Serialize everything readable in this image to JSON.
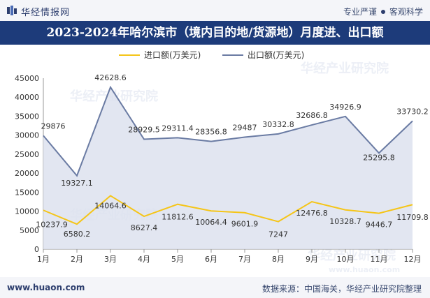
{
  "brand": {
    "logo_text": "华经情报网",
    "tagline_left": "专业严谨",
    "tagline_right": "客观科学",
    "footer_url": "www.huaon.com",
    "footer_source": "数据来源：中国海关，华经产业研究院整理",
    "watermark": "华经产业研究院",
    "watermark_url": "www.huaon.com"
  },
  "colors": {
    "title_bg": "#1d3b7a",
    "import": "#f5c518",
    "export": "#6a7ba3",
    "export_fill": "#dde2ee"
  },
  "chart_data": {
    "type": "line",
    "title": "2023-2024年哈尔滨市（境内目的地/货源地）月度进、出口额",
    "categories": [
      "1月",
      "2月",
      "3月",
      "4月",
      "5月",
      "6月",
      "7月",
      "8月",
      "9月",
      "10月",
      "11月",
      "12月"
    ],
    "series": [
      {
        "name": "进口额(万美元)",
        "values": [
          10237.9,
          6580.2,
          14064.6,
          8627.4,
          11812.6,
          10064.4,
          9601.9,
          7247,
          12476.8,
          10328.7,
          9446.7,
          11709.8
        ],
        "labels": [
          "10237.9",
          "6580.2",
          "14064.6",
          "8627.4",
          "11812.6",
          "10064.4",
          "9601.9",
          "7247",
          "12476.8",
          "10328.7",
          "9446.7",
          "11709.8"
        ]
      },
      {
        "name": "出口额(万美元)",
        "values": [
          29876,
          19327.1,
          42628.6,
          28929.5,
          29311.4,
          28356.8,
          29487,
          30332.8,
          32686.8,
          34926.9,
          25295.8,
          33730.2
        ],
        "labels": [
          "29876",
          "19327.1",
          "42628.6",
          "28929.5",
          "29311.4",
          "28356.8",
          "29487",
          "30332.8",
          "32686.8",
          "34926.9",
          "25295.8",
          "33730.2"
        ]
      }
    ],
    "ylim": [
      0,
      45000
    ],
    "yticks": [
      "0",
      "5000",
      "10000",
      "15000",
      "20000",
      "25000",
      "30000",
      "35000",
      "40000",
      "45000"
    ],
    "legend_position": "top-center",
    "grid": false
  }
}
